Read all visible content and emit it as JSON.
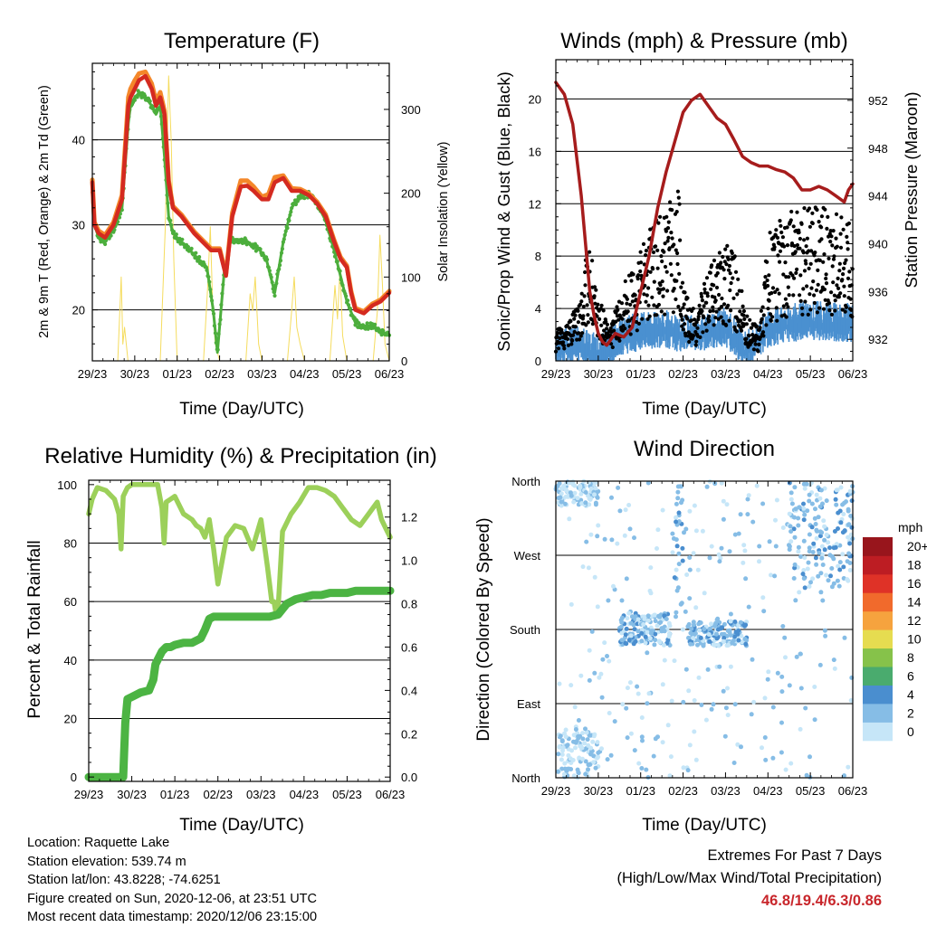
{
  "panels": {
    "temperature": {
      "title": "Temperature (F)",
      "ylabel": "2m & 9m T (Red, Orange) & 2m Td (Green)",
      "ylabel_right": "Solar Insolation (Yellow)",
      "xlabel": "Time (Day/UTC)"
    },
    "winds": {
      "title": "Winds (mph) & Pressure (mb)",
      "ylabel": "Sonic/Prop Wind & Gust (Blue, Black)",
      "ylabel_right": "Station Pressure (Maroon)",
      "xlabel": "Time (Day/UTC)"
    },
    "humidity": {
      "title": "Relative Humidity (%) & Precipitation (in)",
      "ylabel": "Percent & Total Rainfall",
      "xlabel": "Time (Day/UTC)"
    },
    "direction": {
      "title": "Wind Direction",
      "ylabel": "Direction (Colored By Speed)",
      "xlabel": "Time (Day/UTC)",
      "legend_title": "mph"
    }
  },
  "info": {
    "location": "Location: Raquette Lake",
    "elevation": "Station elevation: 539.74 m",
    "latlon": "Station lat/lon: 43.8228; -74.6251",
    "created": "Figure created on Sun, 2020-12-06, at 23:51 UTC",
    "recent": "Most recent data timestamp: 2020/12/06 23:15:00"
  },
  "extremes": {
    "line1": "Extremes For Past 7 Days",
    "line2": "(High/Low/Max Wind/Total Precipitation)",
    "values": "46.8/19.4/6.3/0.86"
  },
  "colors": {
    "temp2m": "#d42a20",
    "temp9m": "#f4872a",
    "dewpoint": "#4cae3c",
    "insolation": "#f5dc5e",
    "wind": "#4a90d0",
    "gust": "#000000",
    "pressure": "#a61c1c",
    "rh": "#9cd05a",
    "precip": "#4cb443"
  },
  "chart_data": [
    {
      "type": "line",
      "title": "Temperature (F)",
      "x_ticks": [
        "29/23",
        "30/23",
        "01/23",
        "02/23",
        "03/23",
        "04/23",
        "05/23",
        "06/23"
      ],
      "x_range": [
        0,
        7
      ],
      "ylim": [
        14,
        49
      ],
      "y_ticks": [
        20,
        30,
        40
      ],
      "y2lim": [
        0,
        355
      ],
      "y2_ticks": [
        0,
        100,
        200,
        300
      ],
      "series": [
        {
          "name": "2m T",
          "color": "#d42a20",
          "axis": "left",
          "x": [
            0,
            0.05,
            0.15,
            0.3,
            0.5,
            0.7,
            0.85,
            0.9,
            1.0,
            1.1,
            1.25,
            1.4,
            1.5,
            1.6,
            1.7,
            1.8,
            1.9,
            2.1,
            2.4,
            2.6,
            2.8,
            3.0,
            3.15,
            3.3,
            3.5,
            3.65,
            3.8,
            4.0,
            4.15,
            4.3,
            4.5,
            4.7,
            4.9,
            5.1,
            5.3,
            5.5,
            5.7,
            5.85,
            6.0,
            6.1,
            6.2,
            6.4,
            6.6,
            6.8,
            7.0
          ],
          "y": [
            35,
            30,
            29,
            28.5,
            30,
            33,
            44,
            45,
            46,
            47,
            47.5,
            46,
            44,
            45,
            43,
            35,
            32,
            31,
            29,
            28,
            27,
            27,
            24,
            31,
            34.5,
            34.6,
            34,
            33,
            33,
            35,
            35.5,
            34,
            34,
            33.5,
            32.5,
            31,
            28,
            26,
            25,
            22,
            20,
            19.6,
            20.5,
            21,
            22
          ]
        },
        {
          "name": "9m T",
          "color": "#f4872a",
          "axis": "left",
          "x": [
            0,
            0.05,
            0.15,
            0.3,
            0.5,
            0.7,
            0.85,
            0.9,
            1.0,
            1.1,
            1.25,
            1.4,
            1.5,
            1.6,
            1.7,
            1.8,
            1.9,
            2.1,
            2.4,
            2.6,
            2.8,
            3.0,
            3.15,
            3.3,
            3.5,
            3.65,
            3.8,
            4.0,
            4.15,
            4.3,
            4.5,
            4.7,
            4.9,
            5.1,
            5.3,
            5.5,
            5.7,
            5.85,
            6.0,
            6.1,
            6.2,
            6.4,
            6.6,
            6.8,
            7.0
          ],
          "y": [
            35.3,
            30.3,
            29.3,
            28.8,
            30.3,
            33.5,
            45,
            46,
            47,
            47.8,
            48,
            46.6,
            44.6,
            45.6,
            43.4,
            35.2,
            32.2,
            31.2,
            29.2,
            28.2,
            27.2,
            27.2,
            24.2,
            31.4,
            35.2,
            35.2,
            34.5,
            33.3,
            33.6,
            35.6,
            35.8,
            34.3,
            34.2,
            33.7,
            32.7,
            31.2,
            28.2,
            26.2,
            25.2,
            22.2,
            20.2,
            19.8,
            20.7,
            21.2,
            22.2
          ]
        },
        {
          "name": "2m Td",
          "color": "#4cae3c",
          "axis": "left",
          "x": [
            0,
            0.05,
            0.15,
            0.3,
            0.5,
            0.7,
            0.85,
            0.9,
            1.0,
            1.1,
            1.25,
            1.4,
            1.5,
            1.6,
            1.7,
            1.8,
            1.9,
            2.1,
            2.3,
            2.5,
            2.7,
            2.85,
            2.95,
            3.1,
            3.25,
            3.4,
            3.6,
            3.8,
            3.95,
            4.1,
            4.3,
            4.5,
            4.7,
            4.9,
            5.1,
            5.3,
            5.5,
            5.7,
            5.85,
            6.0,
            6.2,
            6.4,
            6.6,
            6.8,
            7.0
          ],
          "y": [
            34,
            30,
            28.5,
            28,
            29.5,
            32,
            42,
            44,
            45,
            45.5,
            45,
            44,
            43,
            44,
            38,
            31,
            29,
            28,
            27,
            26,
            25,
            20,
            15,
            24,
            28,
            28.3,
            28.2,
            27.5,
            27,
            26,
            22,
            28,
            32,
            33.5,
            33.5,
            32.5,
            30.5,
            27,
            24,
            21,
            18.5,
            18,
            18.2,
            17.5,
            17
          ]
        },
        {
          "name": "Solar Insolation",
          "color": "#f5dc5e",
          "axis": "right",
          "x": [
            0,
            0.6,
            0.68,
            0.72,
            0.76,
            0.84,
            1.0,
            1.6,
            1.72,
            1.8,
            1.86,
            1.92,
            2.0,
            2.62,
            2.72,
            2.78,
            2.84,
            2.9,
            3.0,
            3.62,
            3.72,
            3.78,
            3.84,
            3.92,
            4.0,
            4.6,
            4.7,
            4.76,
            4.82,
            4.9,
            5.0,
            5.6,
            5.72,
            5.78,
            5.84,
            5.9,
            6.0,
            6.62,
            6.72,
            6.78,
            6.84,
            6.9,
            7.0
          ],
          "y": [
            0,
            0,
            100,
            20,
            40,
            0,
            0,
            0,
            160,
            340,
            260,
            120,
            0,
            0,
            90,
            160,
            60,
            20,
            0,
            0,
            80,
            60,
            100,
            20,
            0,
            0,
            60,
            100,
            40,
            20,
            0,
            0,
            90,
            50,
            110,
            30,
            0,
            0,
            60,
            150,
            90,
            20,
            0
          ]
        }
      ]
    },
    {
      "type": "line",
      "title": "Winds (mph) & Pressure (mb)",
      "x_ticks": [
        "29/23",
        "30/23",
        "01/23",
        "02/23",
        "03/23",
        "04/23",
        "05/23",
        "06/23"
      ],
      "x_range": [
        0,
        7
      ],
      "ylim": [
        0,
        23
      ],
      "y_ticks": [
        0,
        4,
        8,
        12,
        16,
        20
      ],
      "y2lim": [
        930.2,
        955.4
      ],
      "y2_ticks": [
        932,
        936,
        940,
        944,
        948,
        952
      ],
      "series": [
        {
          "name": "Station Pressure",
          "color": "#a61c1c",
          "axis": "right",
          "x": [
            0,
            0.1,
            0.2,
            0.4,
            0.6,
            0.8,
            0.9,
            1.0,
            1.1,
            1.2,
            1.4,
            1.6,
            1.8,
            2.0,
            2.2,
            2.4,
            2.6,
            2.8,
            3.0,
            3.2,
            3.4,
            3.6,
            3.8,
            4.0,
            4.2,
            4.4,
            4.6,
            4.8,
            5.0,
            5.2,
            5.4,
            5.6,
            5.8,
            6.0,
            6.2,
            6.4,
            6.6,
            6.8,
            6.9,
            7.0
          ],
          "y": [
            953.5,
            953,
            952.5,
            950,
            944,
            936,
            934,
            932.5,
            931.8,
            931.5,
            932.5,
            932.2,
            933,
            936,
            939,
            943,
            946,
            948.5,
            951,
            952,
            952.5,
            951.5,
            950.5,
            950,
            948.7,
            947.3,
            946.8,
            946.5,
            946.5,
            946.2,
            946,
            945.5,
            944.5,
            944.5,
            944.8,
            944.5,
            944,
            943.5,
            944.5,
            945
          ]
        },
        {
          "name": "Gust (scatter)",
          "color": "#000000",
          "axis": "left",
          "range": [
            1,
            21
          ]
        },
        {
          "name": "Sonic/Prop Wind",
          "color": "#4a90d0",
          "axis": "left",
          "range": [
            0,
            6.3
          ]
        }
      ]
    },
    {
      "type": "line",
      "title": "Relative Humidity (%) & Precipitation (in)",
      "x_ticks": [
        "29/23",
        "30/23",
        "01/23",
        "02/23",
        "03/23",
        "04/23",
        "05/23",
        "06/23"
      ],
      "x_range": [
        0,
        7
      ],
      "ylim": [
        -1.5,
        101.5
      ],
      "y_ticks": [
        0,
        20,
        40,
        60,
        80,
        100
      ],
      "y2lim": [
        -0.02,
        1.37
      ],
      "y2_ticks": [
        "0.0",
        "0.2",
        "0.4",
        "0.6",
        "0.8",
        "1.0",
        "1.2"
      ],
      "series": [
        {
          "name": "Relative Humidity",
          "color": "#9cd05a",
          "axis": "left",
          "x": [
            0,
            0.08,
            0.2,
            0.4,
            0.6,
            0.7,
            0.75,
            0.8,
            0.9,
            1.0,
            1.2,
            1.4,
            1.6,
            1.7,
            1.75,
            1.8,
            1.9,
            2.0,
            2.2,
            2.4,
            2.5,
            2.6,
            2.7,
            2.8,
            2.9,
            3.0,
            3.2,
            3.4,
            3.6,
            3.8,
            4.0,
            4.15,
            4.25,
            4.3,
            4.35,
            4.4,
            4.5,
            4.7,
            4.9,
            5.1,
            5.3,
            5.5,
            5.7,
            5.9,
            6.1,
            6.3,
            6.5,
            6.7,
            6.8,
            6.9,
            7.0
          ],
          "y": [
            90,
            95,
            99,
            98,
            95,
            90,
            78,
            96,
            99,
            100,
            100,
            100,
            100,
            92,
            80,
            94,
            95,
            96,
            90,
            88,
            86,
            85,
            82,
            88,
            78,
            66,
            82,
            86,
            85,
            78,
            88,
            72,
            60,
            60,
            56,
            58,
            84,
            90,
            94,
            99,
            99,
            98,
            96,
            92,
            88,
            86,
            90,
            94,
            88,
            85,
            82
          ]
        },
        {
          "name": "Total Precipitation",
          "color": "#4cb443",
          "axis": "right",
          "x": [
            0,
            0.8,
            0.82,
            0.85,
            0.9,
            1.0,
            1.1,
            1.2,
            1.4,
            1.5,
            1.55,
            1.6,
            1.7,
            1.8,
            1.9,
            2.0,
            2.2,
            2.4,
            2.6,
            2.7,
            2.8,
            2.9,
            3.0,
            3.2,
            3.4,
            3.6,
            3.8,
            4.0,
            4.2,
            4.4,
            4.6,
            4.8,
            5.0,
            5.2,
            5.4,
            5.6,
            5.8,
            6.0,
            6.2,
            6.4,
            6.6,
            6.8,
            7.0
          ],
          "y": [
            0,
            0,
            0.1,
            0.25,
            0.36,
            0.37,
            0.38,
            0.39,
            0.4,
            0.45,
            0.52,
            0.54,
            0.58,
            0.6,
            0.6,
            0.61,
            0.62,
            0.62,
            0.64,
            0.68,
            0.73,
            0.74,
            0.74,
            0.74,
            0.74,
            0.74,
            0.74,
            0.74,
            0.74,
            0.75,
            0.8,
            0.82,
            0.83,
            0.84,
            0.84,
            0.85,
            0.85,
            0.85,
            0.86,
            0.86,
            0.86,
            0.86,
            0.86
          ]
        }
      ]
    },
    {
      "type": "scatter",
      "title": "Wind Direction",
      "x_ticks": [
        "29/23",
        "30/23",
        "01/23",
        "02/23",
        "03/23",
        "04/23",
        "05/23",
        "06/23"
      ],
      "x_range": [
        0,
        7
      ],
      "y_ticks": [
        "North",
        "East",
        "South",
        "West",
        "North"
      ],
      "ylim": [
        0,
        360
      ],
      "colorbar": {
        "title": "mph",
        "labels": [
          "0",
          "2",
          "4",
          "6",
          "8",
          "10",
          "12",
          "14",
          "16",
          "18",
          "20+"
        ],
        "colors": [
          "#c6e6f8",
          "#86bde6",
          "#4a8ecf",
          "#4aab6e",
          "#86c24a",
          "#e6dc50",
          "#f6a33e",
          "#f16a2c",
          "#df3227",
          "#bd1d23",
          "#98151c"
        ]
      },
      "clusters": [
        {
          "x": [
            0,
            1
          ],
          "direction": [
            330,
            360
          ],
          "speed": [
            0,
            4
          ]
        },
        {
          "x": [
            0,
            1
          ],
          "direction": [
            0,
            60
          ],
          "speed": [
            0,
            4
          ]
        },
        {
          "x": [
            1.5,
            2.7
          ],
          "direction": [
            160,
            200
          ],
          "speed": [
            1,
            5
          ]
        },
        {
          "x": [
            2.8,
            3.0
          ],
          "direction": [
            200,
            360
          ],
          "speed": [
            2,
            5
          ]
        },
        {
          "x": [
            3.1,
            4.5
          ],
          "direction": [
            160,
            190
          ],
          "speed": [
            1,
            5
          ]
        },
        {
          "x": [
            5.5,
            7
          ],
          "direction": [
            230,
            360
          ],
          "speed": [
            1,
            5
          ]
        }
      ]
    }
  ]
}
